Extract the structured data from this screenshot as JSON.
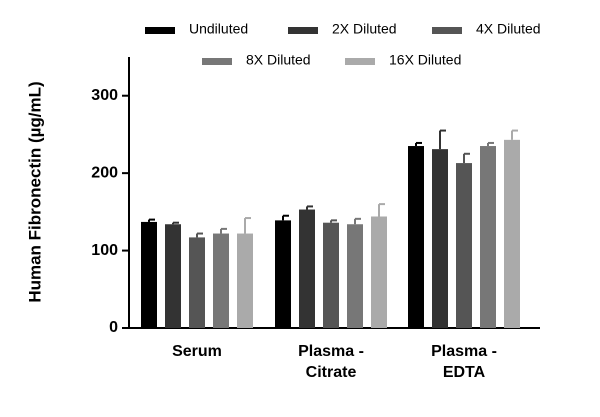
{
  "chart_data": {
    "type": "bar",
    "y_label": "Human Fibronectin (µg/mL)",
    "categories": [
      "Serum",
      "Plasma - Citrate",
      "Plasma - EDTA"
    ],
    "series": [
      {
        "name": "Undiluted",
        "color": "#000000",
        "values": [
          137,
          139,
          235
        ],
        "errors": [
          3,
          6,
          4
        ]
      },
      {
        "name": "2X Diluted",
        "color": "#333333",
        "values": [
          134,
          153,
          231
        ],
        "errors": [
          2,
          4,
          24
        ]
      },
      {
        "name": "4X Diluted",
        "color": "#555555",
        "values": [
          117,
          136,
          213
        ],
        "errors": [
          5,
          3,
          12
        ]
      },
      {
        "name": "8X Diluted",
        "color": "#777777",
        "values": [
          122,
          134,
          235
        ],
        "errors": [
          6,
          7,
          4
        ]
      },
      {
        "name": "16X Diluted",
        "color": "#aaaaaa",
        "values": [
          122,
          144,
          243
        ],
        "errors": [
          20,
          16,
          12
        ]
      }
    ],
    "ylim": [
      0,
      350
    ],
    "yticks": [
      0,
      100,
      200,
      300
    ]
  }
}
